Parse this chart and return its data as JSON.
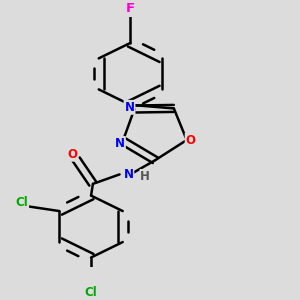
{
  "background_color": "#dcdcdc",
  "bond_color": "#000000",
  "bond_width": 1.8,
  "atom_colors": {
    "F": "#ff00cc",
    "O": "#ff0000",
    "N": "#0000ff",
    "Cl": "#00aa00",
    "C": "#000000",
    "H": "#555555"
  },
  "font_size": 8.5,
  "fig_width": 3.0,
  "fig_height": 3.0,
  "dpi": 100
}
